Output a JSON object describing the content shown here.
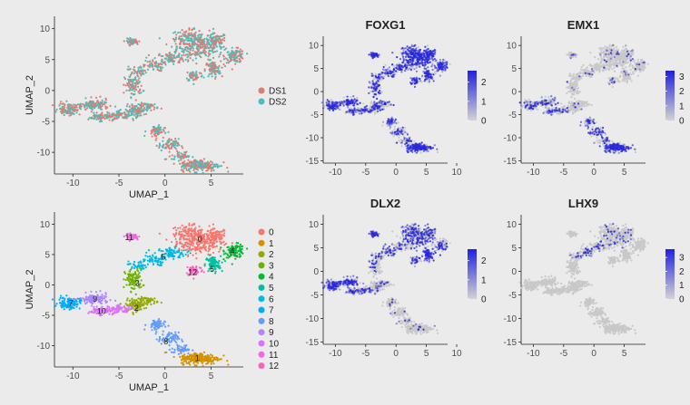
{
  "chart_data": [
    {
      "type": "scatter",
      "panel": "batch",
      "title": "",
      "xlabel": "UMAP_1",
      "ylabel": "UMAP_2",
      "xlim": [
        -12,
        8.5
      ],
      "ylim": [
        -13.5,
        12
      ],
      "x_ticks": [
        -10,
        -5,
        0,
        5
      ],
      "y_ticks": [
        10,
        5,
        0,
        -5,
        -10
      ],
      "legend": "right",
      "series": [
        {
          "name": "DS1",
          "color": "#e07b6f"
        },
        {
          "name": "DS2",
          "color": "#4cbcbc"
        }
      ]
    },
    {
      "type": "scatter",
      "panel": "cluster",
      "title": "",
      "xlabel": "UMAP_1",
      "ylabel": "UMAP_2",
      "xlim": [
        -12,
        8.5
      ],
      "ylim": [
        -13.5,
        12
      ],
      "x_ticks": [
        -10,
        -5,
        0,
        5
      ],
      "y_ticks": [
        10,
        5,
        0,
        -5,
        -10
      ],
      "legend": "right",
      "clusters": [
        {
          "name": "0",
          "color": "#f8766d",
          "label_at": [
            3.8,
            7.5
          ]
        },
        {
          "name": "1",
          "color": "#d39200",
          "label_at": [
            3.5,
            -12.1
          ]
        },
        {
          "name": "2",
          "color": "#93aa00",
          "label_at": [
            -3.1,
            -3.8
          ]
        },
        {
          "name": "3",
          "color": "#6fb000",
          "label_at": [
            -3.0,
            0.3
          ]
        },
        {
          "name": "4",
          "color": "#00ba38",
          "label_at": [
            7.3,
            5.6
          ]
        },
        {
          "name": "5",
          "color": "#00c19f",
          "label_at": [
            5.1,
            2.6
          ]
        },
        {
          "name": "6",
          "color": "#00b9e3",
          "label_at": [
            -0.2,
            4.6
          ]
        },
        {
          "name": "7",
          "color": "#00adfa",
          "label_at": [
            -10.2,
            -3.0
          ]
        },
        {
          "name": "8",
          "color": "#619cff",
          "label_at": [
            0.1,
            -9.3
          ]
        },
        {
          "name": "9",
          "color": "#ae87ff",
          "label_at": [
            -7.6,
            -2.3
          ]
        },
        {
          "name": "10",
          "color": "#db72fb",
          "label_at": [
            -6.9,
            -4.3
          ]
        },
        {
          "name": "11",
          "color": "#f564e3",
          "label_at": [
            -3.9,
            7.8
          ]
        },
        {
          "name": "12",
          "color": "#ff61c3",
          "label_at": [
            3.0,
            2.1
          ]
        }
      ]
    },
    {
      "type": "scatter",
      "panel": "feature",
      "title": "FOXG1",
      "xlim": [
        -12,
        8.5
      ],
      "ylim": [
        -15.5,
        12
      ],
      "x_ticks": [
        -10,
        -5,
        0,
        5,
        10
      ],
      "y_ticks": [
        10,
        5,
        0,
        -5,
        -10,
        -15
      ],
      "colorbar": {
        "ticks": [
          2,
          1,
          0
        ],
        "min": 0,
        "max": 2.6
      }
    },
    {
      "type": "scatter",
      "panel": "feature",
      "title": "EMX1",
      "xlim": [
        -12,
        8.5
      ],
      "ylim": [
        -15.5,
        12
      ],
      "x_ticks": [
        -10,
        -5,
        0,
        5
      ],
      "y_ticks": [
        10,
        5,
        0,
        -5,
        -10,
        -15
      ],
      "colorbar": {
        "ticks": [
          3,
          2,
          1,
          0
        ],
        "min": 0,
        "max": 3.4
      }
    },
    {
      "type": "scatter",
      "panel": "feature",
      "title": "DLX2",
      "xlim": [
        -12,
        8.5
      ],
      "ylim": [
        -15.5,
        12
      ],
      "x_ticks": [
        -10,
        -5,
        0,
        5,
        10
      ],
      "y_ticks": [
        10,
        5,
        0,
        -5,
        -10,
        -15
      ],
      "colorbar": {
        "ticks": [
          2,
          1,
          0
        ],
        "min": 0,
        "max": 2.6
      }
    },
    {
      "type": "scatter",
      "panel": "feature",
      "title": "LHX9",
      "xlim": [
        -12,
        8.5
      ],
      "ylim": [
        -15.5,
        12
      ],
      "x_ticks": [
        -10,
        -5,
        0,
        5
      ],
      "y_ticks": [
        10,
        5,
        0,
        -5,
        -10,
        -15
      ],
      "colorbar": {
        "ticks": [
          3,
          2,
          1,
          0
        ],
        "min": 0,
        "max": 3.6
      }
    }
  ]
}
